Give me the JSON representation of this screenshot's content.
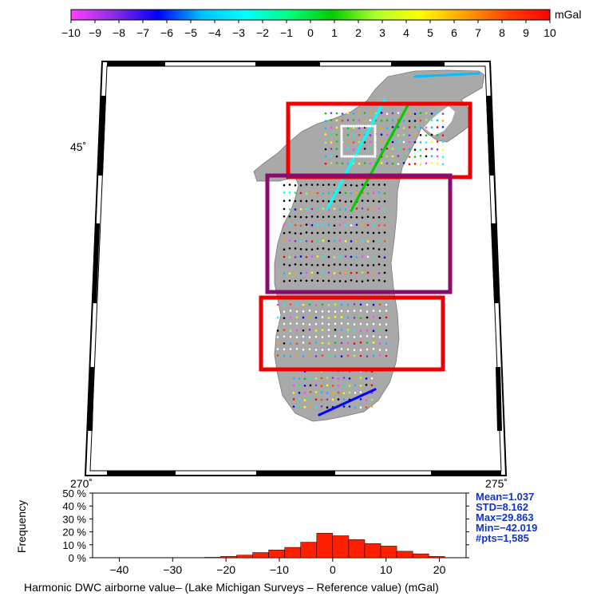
{
  "colorbar": {
    "unit": "mGal",
    "ticks": [
      "−10",
      "−9",
      "−8",
      "−7",
      "−6",
      "−5",
      "−4",
      "−3",
      "−2",
      "−1",
      "0",
      "1",
      "2",
      "3",
      "4",
      "5",
      "6",
      "7",
      "8",
      "9",
      "10"
    ],
    "range": [
      -10,
      10
    ],
    "colors": [
      "#ff40ff",
      "#8a2be2",
      "#0000ff",
      "#00bfff",
      "#00ffff",
      "#00ff7f",
      "#00cc00",
      "#adff2f",
      "#ffff00",
      "#ffa500",
      "#ff4500",
      "#ff0000"
    ]
  },
  "map": {
    "lat_label": "45˚",
    "lon_labels": [
      "270˚",
      "275˚"
    ],
    "land_color": "#a9a9a9",
    "box_colors": {
      "red": "#ee0000",
      "purple": "#8b0a6e"
    }
  },
  "histogram": {
    "ylabel": "Frequency",
    "ytick_labels": [
      "50 %",
      "40 %",
      "30 %",
      "20 %",
      "10 %",
      "0 %"
    ],
    "xtick_labels": [
      "−40",
      "−30",
      "−20",
      "−10",
      "0",
      "10",
      "20"
    ],
    "bar_color": "#ff2000",
    "stats": [
      "Mean=1.037",
      "STD=8.162",
      "Max=29.863",
      "Min=−42.019",
      "#pts=1,585"
    ],
    "stats_color": "#1133cc",
    "xlabel": "Harmonic DWC airborne value– (Lake Michigan Surveys – Reference value) (mGal)"
  },
  "chart_data": {
    "type": "bar",
    "title": "",
    "xlabel": "Harmonic DWC airborne value– (Lake Michigan Surveys – Reference value) (mGal)",
    "ylabel": "Frequency",
    "xlim": [
      -45,
      25
    ],
    "ylim": [
      0,
      50
    ],
    "bin_width": 3,
    "bins": [
      {
        "x0": -24,
        "x1": -21,
        "value": 0.3
      },
      {
        "x0": -21,
        "x1": -18,
        "value": 1
      },
      {
        "x0": -18,
        "x1": -15,
        "value": 2
      },
      {
        "x0": -15,
        "x1": -12,
        "value": 4
      },
      {
        "x0": -12,
        "x1": -9,
        "value": 6
      },
      {
        "x0": -9,
        "x1": -6,
        "value": 8
      },
      {
        "x0": -6,
        "x1": -3,
        "value": 12
      },
      {
        "x0": -3,
        "x1": 0,
        "value": 19
      },
      {
        "x0": 0,
        "x1": 3,
        "value": 17
      },
      {
        "x0": 3,
        "x1": 6,
        "value": 14
      },
      {
        "x0": 6,
        "x1": 9,
        "value": 11
      },
      {
        "x0": 9,
        "x1": 12,
        "value": 9
      },
      {
        "x0": 12,
        "x1": 15,
        "value": 5
      },
      {
        "x0": 15,
        "x1": 18,
        "value": 3
      },
      {
        "x0": 18,
        "x1": 21,
        "value": 1
      }
    ]
  }
}
